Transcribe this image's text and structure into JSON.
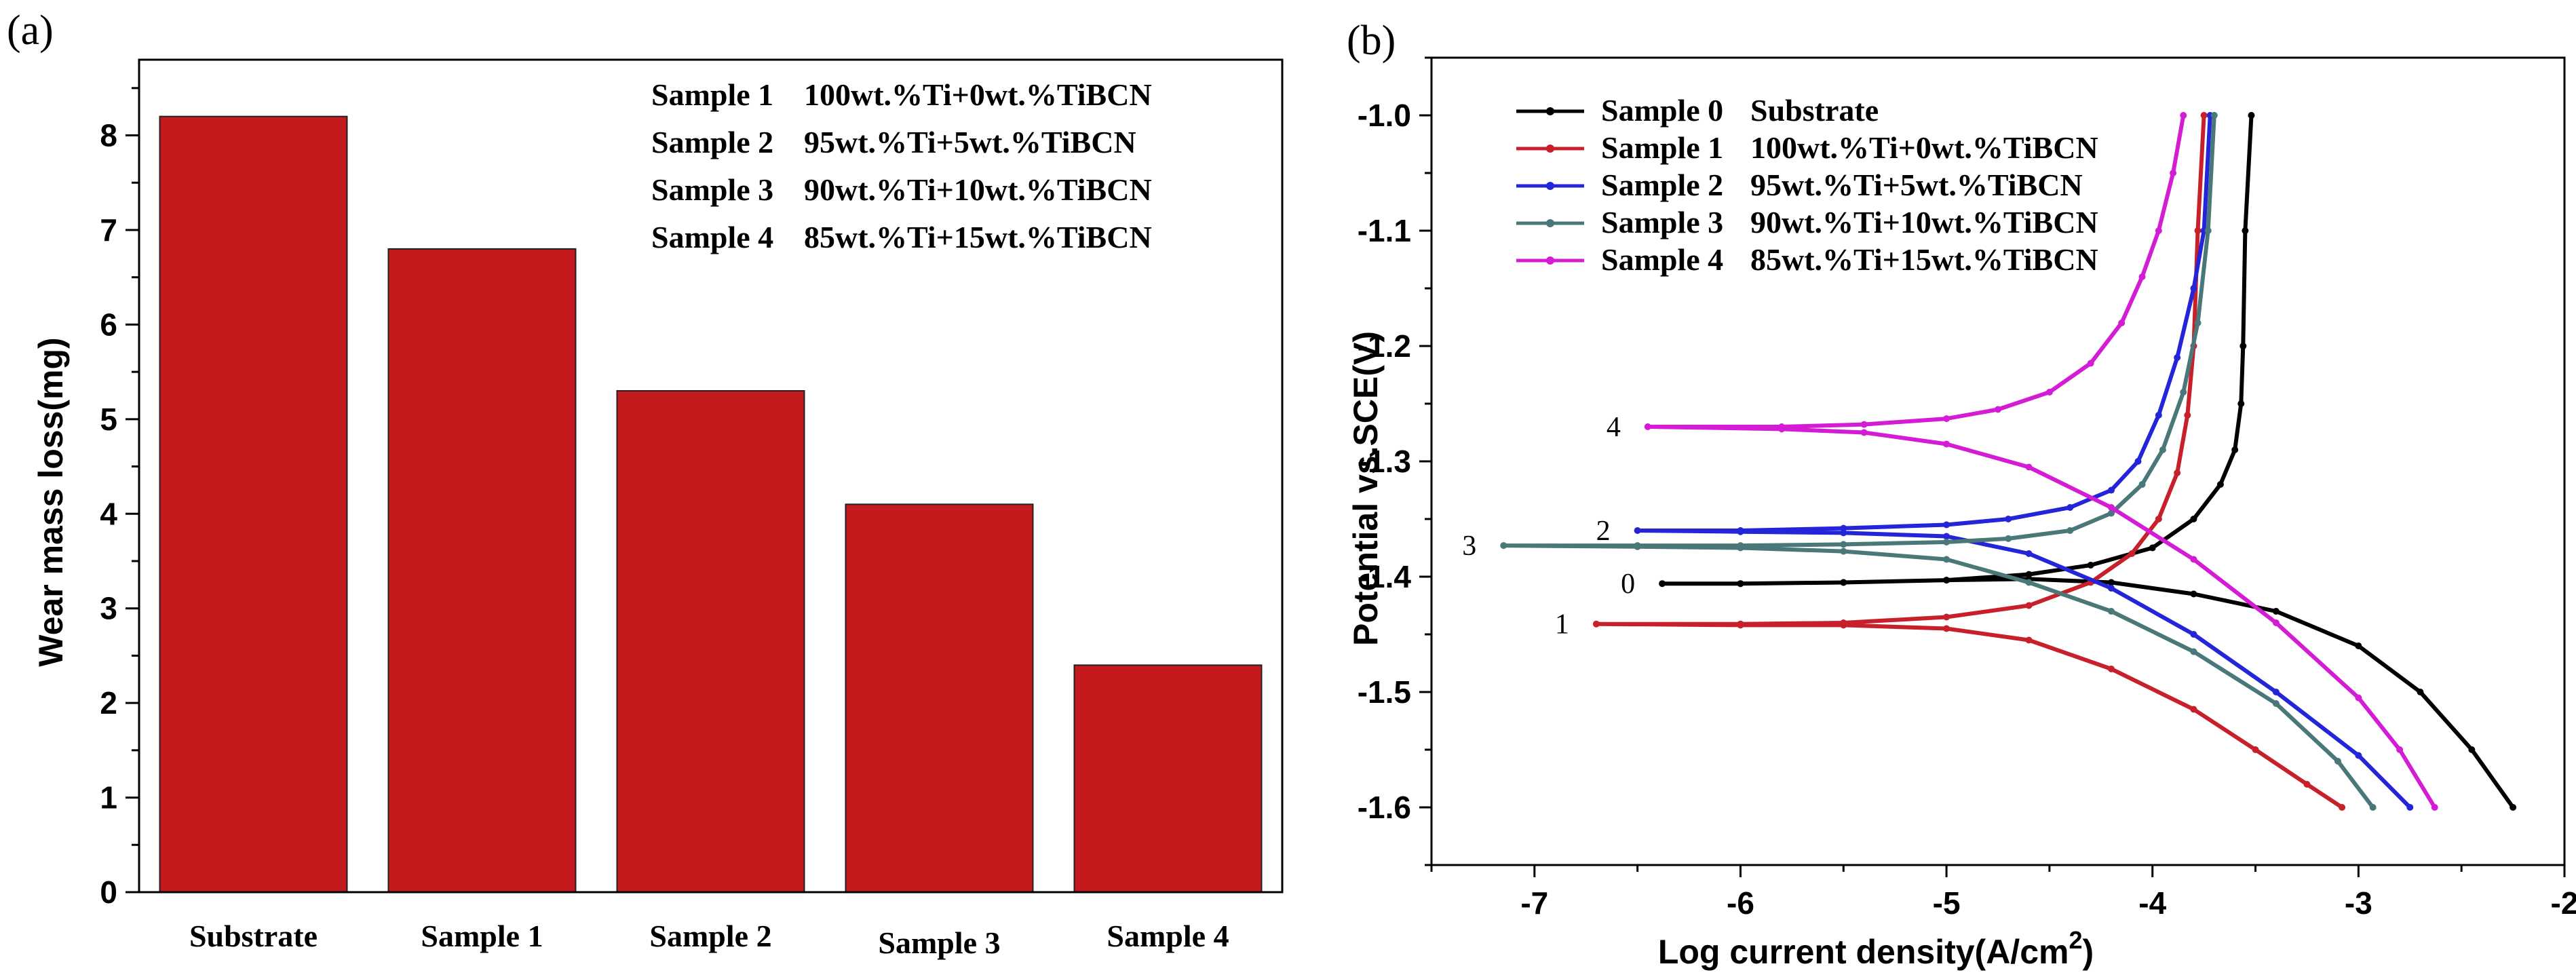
{
  "panel_labels": {
    "a": "(a)",
    "b": "(b)"
  },
  "chart_data": [
    {
      "type": "bar",
      "title": "",
      "ylabel": "Wear mass loss(mg)",
      "xlabel": "",
      "categories": [
        "Substrate",
        "Sample 1",
        "Sample 2",
        "Sample 3",
        "Sample 4"
      ],
      "values": [
        8.2,
        6.8,
        5.3,
        4.1,
        2.4
      ],
      "ylim": [
        0,
        8.8
      ],
      "yticks": [
        "0",
        "1",
        "2",
        "3",
        "4",
        "5",
        "6",
        "7",
        "8"
      ],
      "bar_color": "#c41a1e",
      "legend_placement": "top-right",
      "legend": [
        {
          "name": "Sample 1",
          "desc": "100wt.%Ti+0wt.%TiBCN"
        },
        {
          "name": "Sample 2",
          "desc": "95wt.%Ti+5wt.%TiBCN"
        },
        {
          "name": "Sample 3",
          "desc": "90wt.%Ti+10wt.%TiBCN"
        },
        {
          "name": "Sample 4",
          "desc": "85wt.%Ti+15wt.%TiBCN"
        }
      ]
    },
    {
      "type": "line",
      "title": "",
      "xlabel": "Log current density(A/cm",
      "xlabel_sup": "2",
      "xlabel_end": ")",
      "ylabel": "Potential vs.SCE(V)",
      "xlim": [
        -7.5,
        -2
      ],
      "ylim": [
        -1.65,
        -0.95
      ],
      "xticks": [
        "-7",
        "-6",
        "-5",
        "-4",
        "-3",
        "-2"
      ],
      "yticks": [
        "-1.0",
        "-1.1",
        "-1.2",
        "-1.3",
        "-1.4",
        "-1.5",
        "-1.6"
      ],
      "legend_placement": "top-left",
      "series": [
        {
          "name": "Sample 0",
          "desc": "Substrate",
          "label": "0",
          "color": "#000000",
          "x": [
            -3.52,
            -3.55,
            -3.56,
            -3.57,
            -3.6,
            -3.67,
            -3.8,
            -4.0,
            -4.3,
            -4.6,
            -5.0,
            -5.5,
            -6.0,
            -6.38,
            -6.0,
            -5.5,
            -5.0,
            -4.6,
            -4.2,
            -3.8,
            -3.4,
            -3.0,
            -2.7,
            -2.45,
            -2.25
          ],
          "y": [
            -1.0,
            -1.1,
            -1.2,
            -1.25,
            -1.29,
            -1.32,
            -1.35,
            -1.375,
            -1.39,
            -1.398,
            -1.403,
            -1.405,
            -1.406,
            -1.406,
            -1.406,
            -1.405,
            -1.403,
            -1.402,
            -1.405,
            -1.415,
            -1.43,
            -1.46,
            -1.5,
            -1.55,
            -1.6
          ]
        },
        {
          "name": "Sample 1",
          "desc": "100wt.%Ti+0wt.%TiBCN",
          "label": "1",
          "color": "#c8202a",
          "x": [
            -3.75,
            -3.78,
            -3.8,
            -3.83,
            -3.88,
            -3.97,
            -4.1,
            -4.3,
            -4.6,
            -5.0,
            -5.5,
            -6.0,
            -6.7,
            -6.0,
            -5.5,
            -5.0,
            -4.6,
            -4.2,
            -3.8,
            -3.5,
            -3.25,
            -3.08
          ],
          "y": [
            -1.0,
            -1.1,
            -1.2,
            -1.26,
            -1.31,
            -1.35,
            -1.38,
            -1.405,
            -1.425,
            -1.435,
            -1.44,
            -1.441,
            -1.441,
            -1.442,
            -1.442,
            -1.445,
            -1.455,
            -1.48,
            -1.515,
            -1.55,
            -1.58,
            -1.6
          ]
        },
        {
          "name": "Sample 2",
          "desc": "95wt.%Ti+5wt.%TiBCN",
          "label": "2",
          "color": "#2424d8",
          "x": [
            -3.72,
            -3.75,
            -3.8,
            -3.88,
            -3.97,
            -4.07,
            -4.2,
            -4.4,
            -4.7,
            -5.0,
            -5.5,
            -6.0,
            -6.5,
            -6.0,
            -5.5,
            -5.0,
            -4.6,
            -4.2,
            -3.8,
            -3.4,
            -3.0,
            -2.75
          ],
          "y": [
            -1.0,
            -1.1,
            -1.15,
            -1.21,
            -1.26,
            -1.3,
            -1.325,
            -1.34,
            -1.35,
            -1.355,
            -1.358,
            -1.36,
            -1.36,
            -1.361,
            -1.362,
            -1.365,
            -1.38,
            -1.41,
            -1.45,
            -1.5,
            -1.555,
            -1.6
          ]
        },
        {
          "name": "Sample 3",
          "desc": "90wt.%Ti+10wt.%TiBCN",
          "label": "3",
          "color": "#4a7878",
          "x": [
            -3.7,
            -3.73,
            -3.78,
            -3.85,
            -3.95,
            -4.05,
            -4.2,
            -4.4,
            -4.7,
            -5.0,
            -5.5,
            -6.0,
            -6.5,
            -7.15,
            -6.5,
            -6.0,
            -5.5,
            -5.0,
            -4.6,
            -4.2,
            -3.8,
            -3.4,
            -3.1,
            -2.93
          ],
          "y": [
            -1.0,
            -1.1,
            -1.18,
            -1.24,
            -1.29,
            -1.32,
            -1.345,
            -1.36,
            -1.367,
            -1.37,
            -1.372,
            -1.373,
            -1.373,
            -1.373,
            -1.374,
            -1.375,
            -1.378,
            -1.385,
            -1.405,
            -1.43,
            -1.465,
            -1.51,
            -1.56,
            -1.6
          ]
        },
        {
          "name": "Sample 4",
          "desc": "85wt.%Ti+15wt.%TiBCN",
          "label": "4",
          "color": "#d41cd4",
          "x": [
            -3.85,
            -3.9,
            -3.97,
            -4.05,
            -4.15,
            -4.3,
            -4.5,
            -4.75,
            -5.0,
            -5.4,
            -5.8,
            -6.45,
            -5.8,
            -5.4,
            -5.0,
            -4.6,
            -4.2,
            -3.8,
            -3.4,
            -3.0,
            -2.8,
            -2.63
          ],
          "y": [
            -1.0,
            -1.05,
            -1.1,
            -1.14,
            -1.18,
            -1.215,
            -1.24,
            -1.255,
            -1.263,
            -1.268,
            -1.27,
            -1.27,
            -1.272,
            -1.275,
            -1.285,
            -1.305,
            -1.34,
            -1.385,
            -1.44,
            -1.505,
            -1.55,
            -1.6
          ]
        }
      ]
    }
  ]
}
